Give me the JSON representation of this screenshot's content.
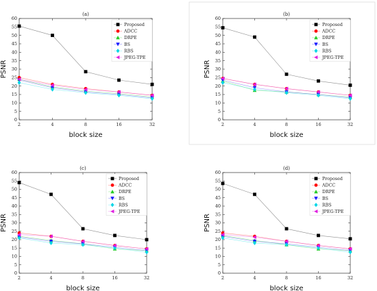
{
  "colors": {
    "Proposed": "#000000",
    "ADCC": "#ff0000",
    "DRPE": "#22cc22",
    "BS": "#1a1aff",
    "RBS": "#00d5e6",
    "JPEG-TPE": "#e020e0"
  },
  "chart_data": [
    {
      "type": "line",
      "title": "(a)",
      "xlabel": "block size",
      "ylabel": "PSNR",
      "categories": [
        "2",
        "4",
        "8",
        "16",
        "32"
      ],
      "ylim": [
        0,
        60
      ],
      "yticks": [
        0,
        5,
        10,
        15,
        20,
        25,
        30,
        35,
        40,
        45,
        50,
        55,
        60
      ],
      "grid": false,
      "legend_position": "top-right",
      "series": [
        {
          "name": "Proposed",
          "marker": "square",
          "values": [
            55.5,
            50.0,
            28.5,
            23.5,
            21.0
          ]
        },
        {
          "name": "ADCC",
          "marker": "circle",
          "values": [
            25.0,
            21.0,
            18.5,
            16.5,
            14.5
          ]
        },
        {
          "name": "DRPE",
          "marker": "triangle-up",
          "values": [
            24.0,
            19.5,
            17.0,
            15.5,
            13.5
          ]
        },
        {
          "name": "BS",
          "marker": "triangle-down",
          "values": [
            23.5,
            19.0,
            16.5,
            15.0,
            13.0
          ]
        },
        {
          "name": "RBS",
          "marker": "diamond",
          "values": [
            22.0,
            18.0,
            16.0,
            14.5,
            12.5
          ]
        },
        {
          "name": "JPEG-TPE",
          "marker": "triangle-left",
          "values": [
            24.0,
            20.5,
            18.0,
            16.5,
            14.5
          ]
        }
      ]
    },
    {
      "type": "line",
      "title": "(b)",
      "xlabel": "block size",
      "ylabel": "PSNR",
      "categories": [
        "2",
        "4",
        "8",
        "16",
        "32"
      ],
      "ylim": [
        0,
        60
      ],
      "yticks": [
        0,
        5,
        10,
        15,
        20,
        25,
        30,
        35,
        40,
        45,
        50,
        55,
        60
      ],
      "grid": false,
      "legend_position": "top-right",
      "series": [
        {
          "name": "Proposed",
          "marker": "square",
          "values": [
            54.5,
            49.0,
            27.0,
            23.0,
            20.5
          ]
        },
        {
          "name": "ADCC",
          "marker": "circle",
          "values": [
            24.5,
            21.0,
            18.5,
            16.5,
            14.5
          ]
        },
        {
          "name": "DRPE",
          "marker": "triangle-up",
          "values": [
            23.0,
            17.5,
            16.5,
            15.0,
            13.5
          ]
        },
        {
          "name": "BS",
          "marker": "triangle-down",
          "values": [
            23.5,
            19.0,
            16.5,
            15.0,
            13.0
          ]
        },
        {
          "name": "RBS",
          "marker": "diamond",
          "values": [
            22.0,
            18.0,
            16.0,
            14.5,
            12.5
          ]
        },
        {
          "name": "JPEG-TPE",
          "marker": "triangle-left",
          "values": [
            24.5,
            21.0,
            18.5,
            16.5,
            14.5
          ]
        }
      ]
    },
    {
      "type": "line",
      "title": "(c)",
      "xlabel": "block size",
      "ylabel": "PSNR",
      "categories": [
        "2",
        "4",
        "8",
        "16",
        "32"
      ],
      "ylim": [
        0,
        60
      ],
      "yticks": [
        0,
        5,
        10,
        15,
        20,
        25,
        30,
        35,
        40,
        45,
        50,
        55,
        60
      ],
      "grid": false,
      "legend_position": "top-right",
      "series": [
        {
          "name": "Proposed",
          "marker": "square",
          "values": [
            54.0,
            47.0,
            26.5,
            22.5,
            20.0
          ]
        },
        {
          "name": "ADCC",
          "marker": "circle",
          "values": [
            24.0,
            22.0,
            19.0,
            16.5,
            14.5
          ]
        },
        {
          "name": "DRPE",
          "marker": "triangle-up",
          "values": [
            22.0,
            19.5,
            17.5,
            14.5,
            13.5
          ]
        },
        {
          "name": "BS",
          "marker": "triangle-down",
          "values": [
            21.5,
            19.0,
            17.5,
            15.5,
            13.5
          ]
        },
        {
          "name": "RBS",
          "marker": "diamond",
          "values": [
            21.0,
            18.0,
            17.0,
            15.0,
            12.5
          ]
        },
        {
          "name": "JPEG-TPE",
          "marker": "triangle-left",
          "values": [
            23.0,
            22.0,
            19.0,
            16.5,
            14.5
          ]
        }
      ]
    },
    {
      "type": "line",
      "title": "(d)",
      "xlabel": "block size",
      "ylabel": "PSNR",
      "categories": [
        "2",
        "4",
        "8",
        "16",
        "32"
      ],
      "ylim": [
        0,
        60
      ],
      "yticks": [
        0,
        5,
        10,
        15,
        20,
        25,
        30,
        35,
        40,
        45,
        50,
        55,
        60
      ],
      "grid": false,
      "legend_position": "top-right",
      "series": [
        {
          "name": "Proposed",
          "marker": "square",
          "values": [
            53.5,
            47.0,
            26.5,
            22.5,
            20.5
          ]
        },
        {
          "name": "ADCC",
          "marker": "circle",
          "values": [
            24.0,
            22.0,
            19.0,
            16.5,
            14.5
          ]
        },
        {
          "name": "DRPE",
          "marker": "triangle-up",
          "values": [
            22.5,
            19.5,
            17.0,
            14.5,
            13.5
          ]
        },
        {
          "name": "BS",
          "marker": "triangle-down",
          "values": [
            22.0,
            19.0,
            17.5,
            15.5,
            13.5
          ]
        },
        {
          "name": "RBS",
          "marker": "diamond",
          "values": [
            21.0,
            18.0,
            17.0,
            15.0,
            12.5
          ]
        },
        {
          "name": "JPEG-TPE",
          "marker": "triangle-left",
          "values": [
            23.0,
            21.5,
            19.0,
            16.5,
            14.5
          ]
        }
      ]
    }
  ]
}
